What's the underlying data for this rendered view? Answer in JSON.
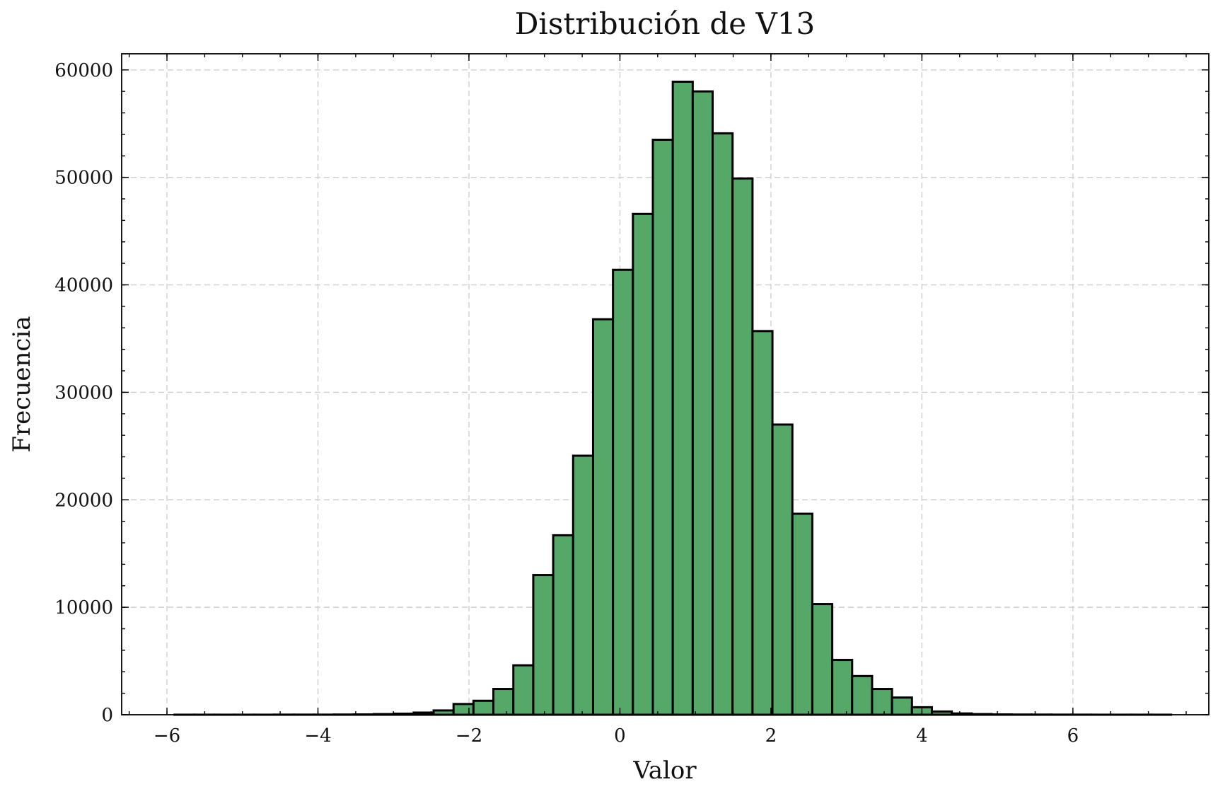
{
  "chart_data": {
    "type": "bar",
    "subtype": "histogram",
    "title": "Distribución de V13",
    "xlabel": "Valor",
    "ylabel": "Frecuencia",
    "xlim": [
      -6.6,
      7.8
    ],
    "ylim": [
      0,
      61500
    ],
    "xticks": [
      -6,
      -4,
      -2,
      0,
      2,
      4,
      6
    ],
    "xtick_labels": [
      "−6",
      "−4",
      "−2",
      "0",
      "2",
      "4",
      "6"
    ],
    "yticks": [
      0,
      10000,
      20000,
      30000,
      40000,
      50000,
      60000
    ],
    "ytick_labels": [
      "0",
      "10000",
      "20000",
      "30000",
      "40000",
      "50000",
      "60000"
    ],
    "grid": true,
    "bar_color": "#55a868",
    "edge_color": "#000000",
    "bin_start": -5.9,
    "bin_width": 0.264,
    "values": [
      5,
      5,
      5,
      5,
      5,
      10,
      10,
      10,
      20,
      30,
      60,
      100,
      200,
      400,
      1000,
      1300,
      2400,
      4600,
      13000,
      16700,
      24100,
      36800,
      41400,
      46600,
      53500,
      58900,
      58000,
      54100,
      49900,
      35700,
      27000,
      18700,
      10300,
      5100,
      3600,
      2400,
      1600,
      700,
      300,
      120,
      60,
      30,
      20,
      15,
      10,
      8,
      5,
      5,
      5,
      5
    ]
  }
}
